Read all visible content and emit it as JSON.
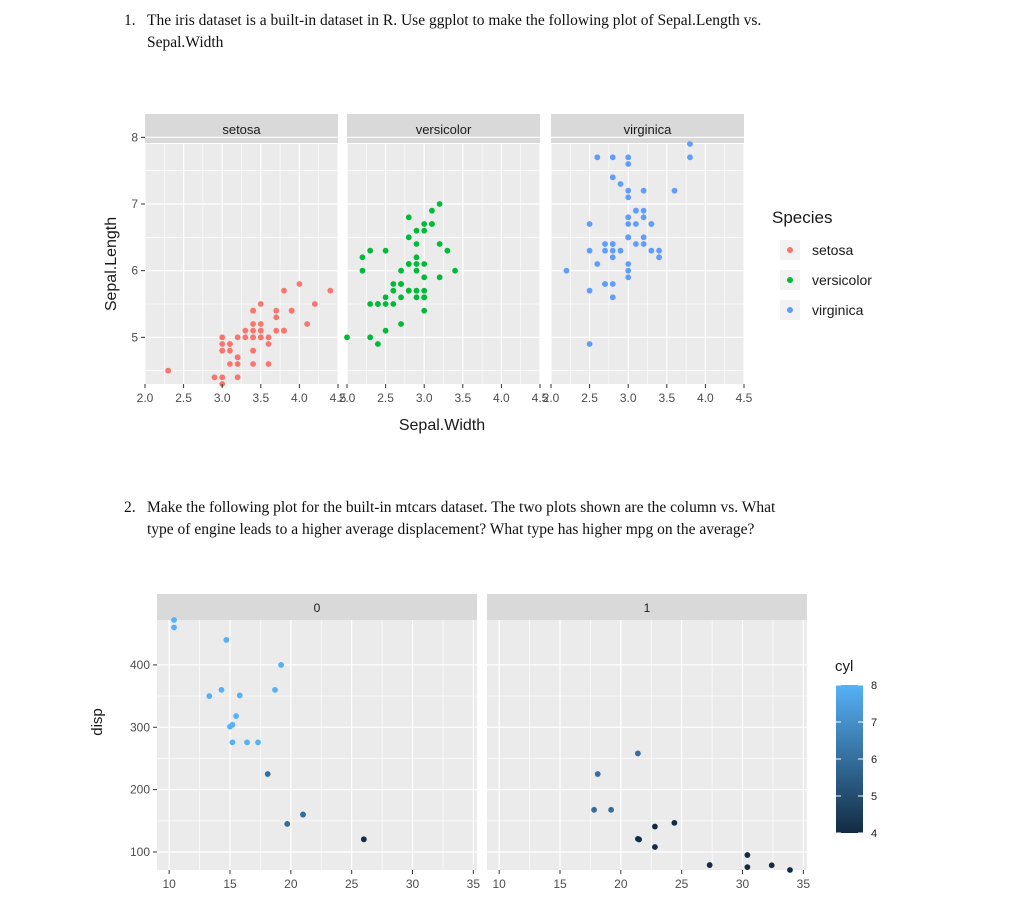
{
  "question1": {
    "number": "1.",
    "line1": "The iris dataset is a built-in dataset in R. Use ggplot to make the following plot of Sepal.Length vs.",
    "line2": "Sepal.Width"
  },
  "question2": {
    "number": "2.",
    "line1": "Make the following plot for the built-in mtcars dataset. The two plots shown are the column vs. What",
    "line2": "type of engine leads to a higher average displacement? What type has higher mpg on the average?"
  },
  "chart_data": [
    {
      "type": "scatter",
      "facet_by": "Species",
      "facets": [
        "setosa",
        "versicolor",
        "virginica"
      ],
      "xlabel": "Sepal.Width",
      "ylabel": "Sepal.Length",
      "xlim": [
        2.0,
        4.5
      ],
      "ylim": [
        4.3,
        7.9
      ],
      "xticks": [
        "2.0",
        "2.5",
        "3.0",
        "3.5",
        "4.0",
        "4.5"
      ],
      "yticks": [
        "5",
        "6",
        "7",
        "8"
      ],
      "grid": true,
      "legend": {
        "title": "Species",
        "position": "right"
      },
      "series": [
        {
          "name": "setosa",
          "color": "#F8766D",
          "points": [
            [
              3.5,
              5.1
            ],
            [
              3.0,
              4.9
            ],
            [
              3.2,
              4.7
            ],
            [
              3.1,
              4.6
            ],
            [
              3.6,
              5.0
            ],
            [
              3.9,
              5.4
            ],
            [
              3.4,
              4.6
            ],
            [
              3.4,
              5.0
            ],
            [
              2.9,
              4.4
            ],
            [
              3.1,
              4.9
            ],
            [
              3.7,
              5.4
            ],
            [
              3.4,
              4.8
            ],
            [
              3.0,
              4.8
            ],
            [
              3.0,
              4.3
            ],
            [
              4.0,
              5.8
            ],
            [
              4.4,
              5.7
            ],
            [
              3.9,
              5.4
            ],
            [
              3.5,
              5.1
            ],
            [
              3.8,
              5.7
            ],
            [
              3.8,
              5.1
            ],
            [
              3.4,
              5.4
            ],
            [
              3.7,
              5.1
            ],
            [
              3.6,
              4.6
            ],
            [
              3.3,
              5.1
            ],
            [
              3.4,
              4.8
            ],
            [
              3.0,
              5.0
            ],
            [
              3.4,
              5.0
            ],
            [
              3.5,
              5.2
            ],
            [
              3.4,
              5.2
            ],
            [
              3.2,
              4.7
            ],
            [
              3.1,
              4.8
            ],
            [
              3.4,
              5.4
            ],
            [
              4.1,
              5.2
            ],
            [
              4.2,
              5.5
            ],
            [
              3.1,
              4.9
            ],
            [
              3.2,
              5.0
            ],
            [
              3.5,
              5.5
            ],
            [
              3.6,
              4.9
            ],
            [
              3.0,
              4.4
            ],
            [
              3.4,
              5.1
            ],
            [
              3.5,
              5.0
            ],
            [
              2.3,
              4.5
            ],
            [
              3.2,
              4.4
            ],
            [
              3.5,
              5.0
            ],
            [
              3.8,
              5.1
            ],
            [
              3.0,
              4.8
            ],
            [
              3.8,
              5.1
            ],
            [
              3.2,
              4.6
            ],
            [
              3.7,
              5.3
            ],
            [
              3.3,
              5.0
            ]
          ]
        },
        {
          "name": "versicolor",
          "color": "#00BA38",
          "points": [
            [
              3.2,
              7.0
            ],
            [
              3.2,
              6.4
            ],
            [
              3.1,
              6.9
            ],
            [
              2.3,
              5.5
            ],
            [
              2.8,
              6.5
            ],
            [
              2.8,
              5.7
            ],
            [
              3.3,
              6.3
            ],
            [
              2.4,
              4.9
            ],
            [
              2.9,
              6.6
            ],
            [
              2.7,
              5.2
            ],
            [
              2.0,
              5.0
            ],
            [
              3.0,
              5.9
            ],
            [
              2.2,
              6.0
            ],
            [
              2.9,
              6.1
            ],
            [
              2.9,
              5.6
            ],
            [
              3.1,
              6.7
            ],
            [
              3.0,
              5.6
            ],
            [
              2.7,
              5.8
            ],
            [
              2.2,
              6.2
            ],
            [
              2.5,
              5.6
            ],
            [
              3.2,
              5.9
            ],
            [
              2.8,
              6.1
            ],
            [
              2.5,
              6.3
            ],
            [
              2.8,
              6.1
            ],
            [
              2.9,
              6.4
            ],
            [
              3.0,
              6.6
            ],
            [
              2.8,
              6.8
            ],
            [
              3.0,
              6.7
            ],
            [
              2.9,
              6.0
            ],
            [
              2.6,
              5.7
            ],
            [
              2.4,
              5.5
            ],
            [
              2.4,
              5.5
            ],
            [
              2.7,
              5.8
            ],
            [
              2.7,
              6.0
            ],
            [
              3.0,
              5.4
            ],
            [
              3.4,
              6.0
            ],
            [
              3.1,
              6.7
            ],
            [
              2.3,
              6.3
            ],
            [
              3.0,
              5.6
            ],
            [
              2.5,
              5.5
            ],
            [
              2.6,
              5.5
            ],
            [
              3.0,
              6.1
            ],
            [
              2.6,
              5.8
            ],
            [
              2.3,
              5.0
            ],
            [
              2.7,
              5.6
            ],
            [
              3.0,
              5.7
            ],
            [
              2.9,
              5.7
            ],
            [
              2.9,
              6.2
            ],
            [
              2.5,
              5.1
            ],
            [
              2.8,
              5.7
            ]
          ]
        },
        {
          "name": "virginica",
          "color": "#619CFF",
          "points": [
            [
              3.3,
              6.3
            ],
            [
              2.7,
              5.8
            ],
            [
              3.0,
              7.1
            ],
            [
              2.9,
              6.3
            ],
            [
              3.0,
              6.5
            ],
            [
              3.0,
              7.6
            ],
            [
              2.5,
              4.9
            ],
            [
              2.9,
              7.3
            ],
            [
              2.5,
              6.7
            ],
            [
              3.6,
              7.2
            ],
            [
              3.2,
              6.5
            ],
            [
              2.7,
              6.4
            ],
            [
              3.0,
              6.8
            ],
            [
              2.5,
              5.7
            ],
            [
              2.8,
              5.8
            ],
            [
              3.2,
              6.4
            ],
            [
              3.0,
              6.5
            ],
            [
              3.8,
              7.7
            ],
            [
              2.6,
              7.7
            ],
            [
              2.2,
              6.0
            ],
            [
              3.2,
              6.9
            ],
            [
              2.8,
              5.6
            ],
            [
              2.8,
              7.7
            ],
            [
              2.7,
              6.3
            ],
            [
              3.3,
              6.7
            ],
            [
              3.2,
              7.2
            ],
            [
              2.8,
              6.2
            ],
            [
              3.0,
              6.1
            ],
            [
              2.8,
              6.4
            ],
            [
              3.0,
              7.2
            ],
            [
              2.8,
              7.4
            ],
            [
              3.8,
              7.9
            ],
            [
              2.8,
              6.4
            ],
            [
              2.8,
              6.3
            ],
            [
              2.6,
              6.1
            ],
            [
              3.0,
              7.7
            ],
            [
              3.4,
              6.3
            ],
            [
              3.1,
              6.4
            ],
            [
              3.0,
              6.0
            ],
            [
              3.1,
              6.9
            ],
            [
              3.1,
              6.7
            ],
            [
              3.1,
              6.9
            ],
            [
              2.7,
              5.8
            ],
            [
              3.2,
              6.8
            ],
            [
              3.3,
              6.7
            ],
            [
              3.0,
              6.7
            ],
            [
              2.5,
              6.3
            ],
            [
              3.0,
              6.5
            ],
            [
              3.4,
              6.2
            ],
            [
              3.0,
              5.9
            ]
          ]
        }
      ]
    },
    {
      "type": "scatter",
      "facet_by": "vs",
      "facets": [
        "0",
        "1"
      ],
      "xlabel": "",
      "ylabel": "disp",
      "xlim": [
        9.0,
        35.3
      ],
      "ylim": [
        71.1,
        472
      ],
      "xticks": [
        "10",
        "15",
        "20",
        "25",
        "30",
        "35"
      ],
      "yticks": [
        "100",
        "200",
        "300",
        "400"
      ],
      "grid": true,
      "legend": {
        "title": "cyl",
        "position": "right",
        "range": [
          4,
          8
        ],
        "ticks": [
          "4",
          "5",
          "6",
          "7",
          "8"
        ],
        "low_color": "#132B43",
        "high_color": "#56B1F7"
      },
      "panels": [
        {
          "facet": "0",
          "points": [
            [
              21.0,
              160,
              6
            ],
            [
              21.0,
              160,
              6
            ],
            [
              18.7,
              360,
              8
            ],
            [
              18.1,
              225,
              6
            ],
            [
              14.3,
              360,
              8
            ],
            [
              16.4,
              275.8,
              8
            ],
            [
              17.3,
              275.8,
              8
            ],
            [
              15.2,
              275.8,
              8
            ],
            [
              10.4,
              472,
              8
            ],
            [
              10.4,
              460,
              8
            ],
            [
              14.7,
              440,
              8
            ],
            [
              15.5,
              318,
              8
            ],
            [
              15.2,
              304,
              8
            ],
            [
              13.3,
              350,
              8
            ],
            [
              19.2,
              400,
              8
            ],
            [
              26.0,
              120.3,
              4
            ],
            [
              15.8,
              351,
              8
            ],
            [
              19.7,
              145,
              6
            ],
            [
              15.0,
              301,
              8
            ]
          ]
        },
        {
          "facet": "1",
          "points": [
            [
              22.8,
              108,
              4
            ],
            [
              21.4,
              258,
              6
            ],
            [
              18.1,
              225,
              6
            ],
            [
              24.4,
              146.7,
              4
            ],
            [
              22.8,
              140.8,
              4
            ],
            [
              19.2,
              167.6,
              6
            ],
            [
              17.8,
              167.6,
              6
            ],
            [
              32.4,
              78.7,
              4
            ],
            [
              30.4,
              75.7,
              4
            ],
            [
              33.9,
              71.1,
              4
            ],
            [
              21.5,
              120.1,
              4
            ],
            [
              27.3,
              79,
              4
            ],
            [
              30.4,
              95.1,
              4
            ],
            [
              21.4,
              121,
              4
            ]
          ]
        }
      ]
    }
  ]
}
